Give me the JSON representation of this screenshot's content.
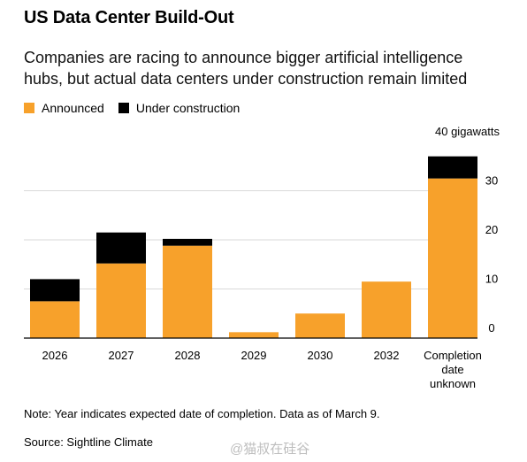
{
  "title": "US Data Center Build-Out",
  "subtitle": "Companies are racing to announce bigger artificial intelligence hubs, but actual data centers under construction remain limited",
  "legend": [
    {
      "label": "Announced",
      "color": "#f7a12b"
    },
    {
      "label": "Under construction",
      "color": "#000000"
    }
  ],
  "note": "Note: Year indicates expected date of completion. Data as of March 9.",
  "source": "Source: Sightline Climate",
  "watermark": "@猫叔在硅谷",
  "chart_data": {
    "type": "bar",
    "stacked": true,
    "unit_label": "40 gigawatts",
    "categories": [
      "2026",
      "2027",
      "2028",
      "2029",
      "2030",
      "2032",
      "Completion date unknown"
    ],
    "category_lines": [
      [
        "2026"
      ],
      [
        "2027"
      ],
      [
        "2028"
      ],
      [
        "2029"
      ],
      [
        "2030"
      ],
      [
        "2032"
      ],
      [
        "Completion",
        "date",
        "unknown"
      ]
    ],
    "series": [
      {
        "name": "Announced",
        "color": "#f7a12b",
        "values": [
          7.5,
          15.2,
          18.8,
          1.2,
          5.0,
          11.5,
          32.5
        ]
      },
      {
        "name": "Under construction",
        "color": "#000000",
        "values": [
          4.5,
          6.3,
          1.4,
          0,
          0,
          0,
          4.5
        ]
      }
    ],
    "ylim": [
      0,
      40
    ],
    "yticks": [
      0,
      10,
      20,
      30
    ],
    "grid": true,
    "legend_position": "top-left"
  }
}
